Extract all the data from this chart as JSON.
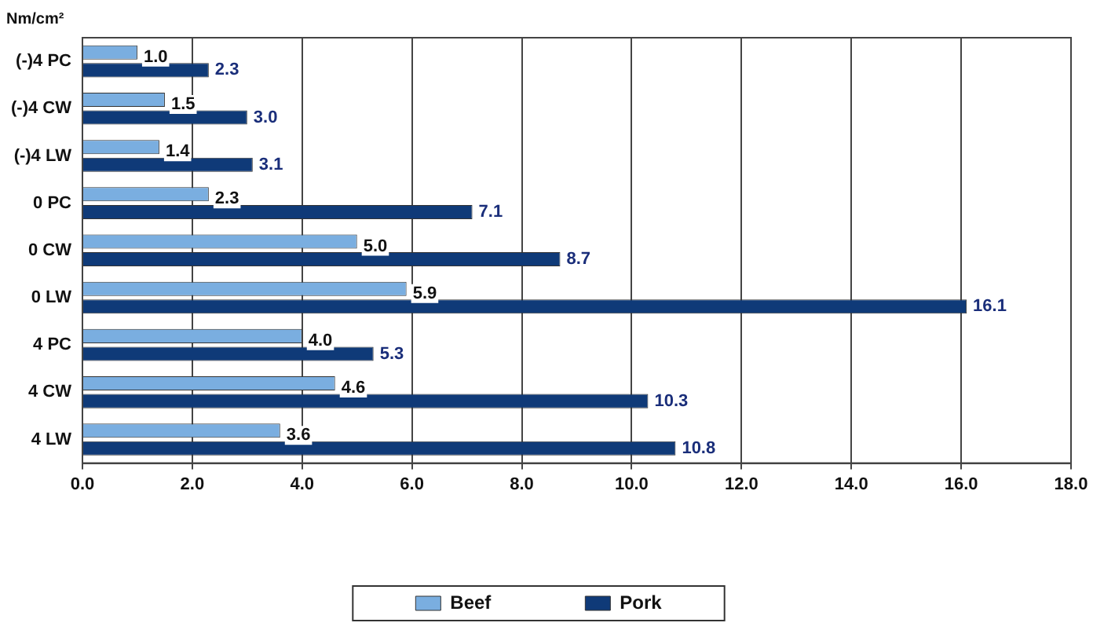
{
  "chart_data": {
    "type": "bar",
    "orientation": "horizontal",
    "title": "Nm/cm²",
    "categories": [
      "(-)4 PC",
      "(-)4 CW",
      "(-)4 LW",
      "0 PC",
      "0 CW",
      "0 LW",
      "4 PC",
      "4 CW",
      "4 LW"
    ],
    "series": [
      {
        "name": "Beef",
        "color": "#7aaee0",
        "values": [
          1.0,
          1.5,
          1.4,
          2.3,
          5.0,
          5.9,
          4.0,
          4.6,
          3.6
        ],
        "value_labels": [
          "1.0",
          "1.5",
          "1.4",
          "2.3",
          "5.0",
          "5.9",
          "4.0",
          "4.6",
          "3.6"
        ]
      },
      {
        "name": "Pork",
        "color": "#0f3a78",
        "values": [
          2.3,
          3.0,
          3.1,
          7.1,
          8.7,
          16.1,
          5.3,
          10.3,
          10.8
        ],
        "value_labels": [
          "2.3",
          "3.0",
          "3.1",
          "7.1",
          "8.7",
          "16.1",
          "5.3",
          "10.3",
          "10.8"
        ]
      }
    ],
    "xlim": [
      0,
      18
    ],
    "xticks": [
      {
        "value": 0,
        "label": "0.0"
      },
      {
        "value": 2,
        "label": "2.0"
      },
      {
        "value": 4,
        "label": "4.0"
      },
      {
        "value": 6,
        "label": "6.0"
      },
      {
        "value": 8,
        "label": "8.0"
      },
      {
        "value": 10,
        "label": "10.0"
      },
      {
        "value": 12,
        "label": "12.0"
      },
      {
        "value": 14,
        "label": "14.0"
      },
      {
        "value": 16,
        "label": "16.0"
      },
      {
        "value": 18,
        "label": "18.0"
      }
    ],
    "grid": "x",
    "legend": "bottom"
  }
}
